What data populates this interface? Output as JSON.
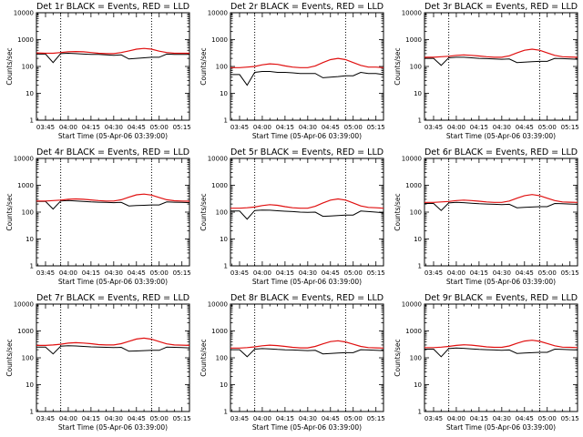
{
  "chart_data": [
    {
      "type": "line",
      "title": "Det 1r BLACK = Events, RED = LLD",
      "xlabel": "Start Time (05-Apr-06 03:39:00)",
      "ylabel": "Counts/sec",
      "xticks": [
        "03:45",
        "04:00",
        "04:15",
        "04:30",
        "04:45",
        "05:00",
        "05:15"
      ],
      "yticks": [
        "1",
        "10",
        "100",
        "1000",
        "10000"
      ],
      "ylim": [
        1,
        10000
      ],
      "yscale": "log",
      "xlim": [
        "03:39",
        "05:20"
      ],
      "marker_lines": [
        "03:55",
        "04:55"
      ],
      "x": [
        "03:39",
        "03:45",
        "03:50",
        "03:55",
        "04:00",
        "04:05",
        "04:10",
        "04:15",
        "04:20",
        "04:25",
        "04:30",
        "04:35",
        "04:40",
        "04:45",
        "04:50",
        "04:55",
        "05:00",
        "05:05",
        "05:10",
        "05:15",
        "05:20"
      ],
      "series": [
        {
          "name": "Events",
          "color": "#000000",
          "values": [
            290,
            290,
            140,
            300,
            310,
            300,
            290,
            280,
            280,
            270,
            260,
            270,
            190,
            200,
            210,
            220,
            220,
            290,
            280,
            280,
            280
          ]
        },
        {
          "name": "LLD",
          "color": "#e01010",
          "values": [
            320,
            310,
            310,
            330,
            350,
            360,
            350,
            330,
            310,
            300,
            300,
            330,
            380,
            440,
            470,
            440,
            370,
            330,
            310,
            310,
            310
          ]
        }
      ]
    },
    {
      "type": "line",
      "title": "Det 2r BLACK = Events, RED = LLD",
      "xlabel": "Start Time (05-Apr-06 03:39:00)",
      "ylabel": "Counts/sec",
      "xticks": [
        "03:45",
        "04:00",
        "04:15",
        "04:30",
        "04:45",
        "05:00",
        "05:15"
      ],
      "yticks": [
        "1",
        "10",
        "100",
        "1000",
        "10000"
      ],
      "ylim": [
        1,
        10000
      ],
      "yscale": "log",
      "xlim": [
        "03:39",
        "05:20"
      ],
      "marker_lines": [
        "03:55",
        "04:55"
      ],
      "x": [
        "03:39",
        "03:45",
        "03:50",
        "03:55",
        "04:00",
        "04:05",
        "04:10",
        "04:15",
        "04:20",
        "04:25",
        "04:30",
        "04:35",
        "04:40",
        "04:45",
        "04:50",
        "04:55",
        "05:00",
        "05:05",
        "05:10",
        "05:15",
        "05:20"
      ],
      "series": [
        {
          "name": "Events",
          "color": "#000000",
          "values": [
            50,
            50,
            20,
            60,
            65,
            65,
            60,
            60,
            58,
            55,
            55,
            55,
            38,
            40,
            42,
            45,
            45,
            60,
            55,
            55,
            50
          ]
        },
        {
          "name": "LLD",
          "color": "#e01010",
          "values": [
            90,
            90,
            95,
            100,
            115,
            125,
            120,
            105,
            95,
            90,
            90,
            105,
            140,
            180,
            200,
            180,
            140,
            110,
            95,
            95,
            90
          ]
        }
      ]
    },
    {
      "type": "line",
      "title": "Det 3r BLACK = Events, RED = LLD",
      "xlabel": "Start Time (05-Apr-06 03:39:00)",
      "ylabel": "Counts/sec",
      "xticks": [
        "03:45",
        "04:00",
        "04:15",
        "04:30",
        "04:45",
        "05:00",
        "05:15"
      ],
      "yticks": [
        "1",
        "10",
        "100",
        "1000",
        "10000"
      ],
      "ylim": [
        1,
        10000
      ],
      "yscale": "log",
      "xlim": [
        "03:39",
        "05:20"
      ],
      "marker_lines": [
        "03:55",
        "04:55"
      ],
      "x": [
        "03:39",
        "03:45",
        "03:50",
        "03:55",
        "04:00",
        "04:05",
        "04:10",
        "04:15",
        "04:20",
        "04:25",
        "04:30",
        "04:35",
        "04:40",
        "04:45",
        "04:50",
        "04:55",
        "05:00",
        "05:05",
        "05:10",
        "05:15",
        "05:20"
      ],
      "series": [
        {
          "name": "Events",
          "color": "#000000",
          "values": [
            200,
            200,
            110,
            210,
            220,
            220,
            210,
            200,
            195,
            190,
            185,
            190,
            140,
            145,
            150,
            155,
            155,
            200,
            195,
            190,
            185
          ]
        },
        {
          "name": "LLD",
          "color": "#e01010",
          "values": [
            220,
            220,
            230,
            240,
            260,
            270,
            260,
            245,
            230,
            220,
            220,
            250,
            320,
            400,
            440,
            400,
            320,
            260,
            230,
            225,
            220
          ]
        }
      ]
    },
    {
      "type": "line",
      "title": "Det 4r BLACK = Events, RED = LLD",
      "xlabel": "Start Time (05-Apr-06 03:39:00)",
      "ylabel": "Counts/sec",
      "xticks": [
        "03:45",
        "04:00",
        "04:15",
        "04:30",
        "04:45",
        "05:00",
        "05:15"
      ],
      "yticks": [
        "1",
        "10",
        "100",
        "1000",
        "10000"
      ],
      "ylim": [
        1,
        10000
      ],
      "yscale": "log",
      "xlim": [
        "03:39",
        "05:20"
      ],
      "marker_lines": [
        "03:55",
        "04:55"
      ],
      "x": [
        "03:39",
        "03:45",
        "03:50",
        "03:55",
        "04:00",
        "04:05",
        "04:10",
        "04:15",
        "04:20",
        "04:25",
        "04:30",
        "04:35",
        "04:40",
        "04:45",
        "04:50",
        "04:55",
        "05:00",
        "05:05",
        "05:10",
        "05:15",
        "05:20"
      ],
      "series": [
        {
          "name": "Events",
          "color": "#000000",
          "values": [
            250,
            250,
            130,
            260,
            270,
            260,
            250,
            240,
            235,
            230,
            225,
            230,
            170,
            175,
            180,
            185,
            185,
            240,
            235,
            230,
            225
          ]
        },
        {
          "name": "LLD",
          "color": "#e01010",
          "values": [
            260,
            260,
            270,
            280,
            300,
            310,
            300,
            285,
            270,
            260,
            260,
            290,
            360,
            440,
            470,
            430,
            350,
            290,
            265,
            260,
            255
          ]
        }
      ]
    },
    {
      "type": "line",
      "title": "Det 5r BLACK = Events, RED = LLD",
      "xlabel": "Start Time (05-Apr-06 03:39:00)",
      "ylabel": "Counts/sec",
      "xticks": [
        "03:45",
        "04:00",
        "04:15",
        "04:30",
        "04:45",
        "05:00",
        "05:15"
      ],
      "yticks": [
        "1",
        "10",
        "100",
        "1000",
        "10000"
      ],
      "ylim": [
        1,
        10000
      ],
      "yscale": "log",
      "xlim": [
        "03:39",
        "05:20"
      ],
      "marker_lines": [
        "03:55",
        "04:55"
      ],
      "x": [
        "03:39",
        "03:45",
        "03:50",
        "03:55",
        "04:00",
        "04:05",
        "04:10",
        "04:15",
        "04:20",
        "04:25",
        "04:30",
        "04:35",
        "04:40",
        "04:45",
        "04:50",
        "04:55",
        "05:00",
        "05:05",
        "05:10",
        "05:15",
        "05:20"
      ],
      "series": [
        {
          "name": "Events",
          "color": "#000000",
          "values": [
            110,
            110,
            55,
            115,
            120,
            118,
            112,
            108,
            105,
            100,
            98,
            100,
            70,
            72,
            75,
            78,
            78,
            110,
            105,
            100,
            95
          ]
        },
        {
          "name": "LLD",
          "color": "#e01010",
          "values": [
            140,
            140,
            145,
            155,
            175,
            190,
            180,
            160,
            145,
            140,
            140,
            165,
            220,
            280,
            310,
            280,
            220,
            170,
            150,
            145,
            140
          ]
        }
      ]
    },
    {
      "type": "line",
      "title": "Det 6r BLACK = Events, RED = LLD",
      "xlabel": "Start Time (05-Apr-06 03:39:00)",
      "ylabel": "Counts/sec",
      "xticks": [
        "03:45",
        "04:00",
        "04:15",
        "04:30",
        "04:45",
        "05:00",
        "05:15"
      ],
      "yticks": [
        "1",
        "10",
        "100",
        "1000",
        "10000"
      ],
      "ylim": [
        1,
        10000
      ],
      "yscale": "log",
      "xlim": [
        "03:39",
        "05:20"
      ],
      "marker_lines": [
        "03:55",
        "04:55"
      ],
      "x": [
        "03:39",
        "03:45",
        "03:50",
        "03:55",
        "04:00",
        "04:05",
        "04:10",
        "04:15",
        "04:20",
        "04:25",
        "04:30",
        "04:35",
        "04:40",
        "04:45",
        "04:50",
        "04:55",
        "05:00",
        "05:05",
        "05:10",
        "05:15",
        "05:20"
      ],
      "series": [
        {
          "name": "Events",
          "color": "#000000",
          "values": [
            210,
            210,
            115,
            220,
            230,
            225,
            215,
            205,
            200,
            195,
            190,
            195,
            145,
            150,
            155,
            160,
            160,
            210,
            205,
            200,
            195
          ]
        },
        {
          "name": "LLD",
          "color": "#e01010",
          "values": [
            230,
            230,
            240,
            250,
            270,
            280,
            270,
            255,
            240,
            230,
            230,
            260,
            330,
            410,
            450,
            410,
            330,
            270,
            240,
            235,
            230
          ]
        }
      ]
    },
    {
      "type": "line",
      "title": "Det 7r BLACK = Events, RED = LLD",
      "xlabel": "Start Time (05-Apr-06 03:39:00)",
      "ylabel": "Counts/sec",
      "xticks": [
        "03:45",
        "04:00",
        "04:15",
        "04:30",
        "04:45",
        "05:00",
        "05:15"
      ],
      "yticks": [
        "1",
        "10",
        "100",
        "1000",
        "10000"
      ],
      "ylim": [
        1,
        10000
      ],
      "yscale": "log",
      "xlim": [
        "03:39",
        "05:20"
      ],
      "marker_lines": [
        "03:55",
        "04:55"
      ],
      "x": [
        "03:39",
        "03:45",
        "03:50",
        "03:55",
        "04:00",
        "04:05",
        "04:10",
        "04:15",
        "04:20",
        "04:25",
        "04:30",
        "04:35",
        "04:40",
        "04:45",
        "04:50",
        "04:55",
        "05:00",
        "05:05",
        "05:10",
        "05:15",
        "05:20"
      ],
      "series": [
        {
          "name": "Events",
          "color": "#000000",
          "values": [
            250,
            250,
            140,
            270,
            280,
            275,
            265,
            255,
            250,
            245,
            240,
            245,
            175,
            180,
            185,
            190,
            190,
            250,
            245,
            240,
            235
          ]
        },
        {
          "name": "LLD",
          "color": "#e01010",
          "values": [
            290,
            290,
            300,
            320,
            350,
            365,
            355,
            335,
            310,
            300,
            300,
            335,
            410,
            500,
            540,
            490,
            400,
            330,
            300,
            295,
            290
          ]
        }
      ]
    },
    {
      "type": "line",
      "title": "Det 8r BLACK = Events, RED = LLD",
      "xlabel": "Start Time (05-Apr-06 03:39:00)",
      "ylabel": "Counts/sec",
      "xticks": [
        "03:45",
        "04:00",
        "04:15",
        "04:30",
        "04:45",
        "05:00",
        "05:15"
      ],
      "yticks": [
        "1",
        "10",
        "100",
        "1000",
        "10000"
      ],
      "ylim": [
        1,
        10000
      ],
      "yscale": "log",
      "xlim": [
        "03:39",
        "05:20"
      ],
      "marker_lines": [
        "03:55",
        "04:55"
      ],
      "x": [
        "03:39",
        "03:45",
        "03:50",
        "03:55",
        "04:00",
        "04:05",
        "04:10",
        "04:15",
        "04:20",
        "04:25",
        "04:30",
        "04:35",
        "04:40",
        "04:45",
        "04:50",
        "04:55",
        "05:00",
        "05:05",
        "05:10",
        "05:15",
        "05:20"
      ],
      "series": [
        {
          "name": "Events",
          "color": "#000000",
          "values": [
            200,
            200,
            110,
            210,
            220,
            215,
            205,
            198,
            195,
            190,
            185,
            190,
            140,
            145,
            150,
            155,
            155,
            200,
            195,
            190,
            185
          ]
        },
        {
          "name": "LLD",
          "color": "#e01010",
          "values": [
            230,
            230,
            240,
            255,
            280,
            295,
            285,
            265,
            245,
            235,
            235,
            265,
            330,
            400,
            430,
            390,
            320,
            265,
            240,
            235,
            230
          ]
        }
      ]
    },
    {
      "type": "line",
      "title": "Det 9r BLACK = Events, RED = LLD",
      "xlabel": "Start Time (05-Apr-06 03:39:00)",
      "ylabel": "Counts/sec",
      "xticks": [
        "03:45",
        "04:00",
        "04:15",
        "04:30",
        "04:45",
        "05:00",
        "05:15"
      ],
      "yticks": [
        "1",
        "10",
        "100",
        "1000",
        "10000"
      ],
      "ylim": [
        1,
        10000
      ],
      "yscale": "log",
      "xlim": [
        "03:39",
        "05:20"
      ],
      "marker_lines": [
        "03:55",
        "04:55"
      ],
      "x": [
        "03:39",
        "03:45",
        "03:50",
        "03:55",
        "04:00",
        "04:05",
        "04:10",
        "04:15",
        "04:20",
        "04:25",
        "04:30",
        "04:35",
        "04:40",
        "04:45",
        "04:50",
        "04:55",
        "05:00",
        "05:05",
        "05:10",
        "05:15",
        "05:20"
      ],
      "series": [
        {
          "name": "Events",
          "color": "#000000",
          "values": [
            210,
            210,
            110,
            220,
            230,
            225,
            215,
            205,
            200,
            195,
            190,
            195,
            145,
            150,
            155,
            160,
            160,
            210,
            205,
            200,
            195
          ]
        },
        {
          "name": "LLD",
          "color": "#e01010",
          "values": [
            240,
            240,
            250,
            265,
            290,
            305,
            295,
            275,
            255,
            245,
            245,
            275,
            345,
            420,
            450,
            410,
            340,
            280,
            250,
            245,
            240
          ]
        }
      ]
    }
  ]
}
